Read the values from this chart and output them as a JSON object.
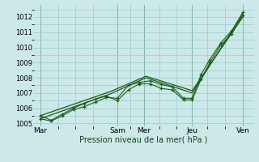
{
  "xlabel": "Pression niveau de la mer( hPa )",
  "background_color": "#cce8e8",
  "grid_color": "#99cccc",
  "line_color": "#1a5c1a",
  "vline_color": "#336633",
  "ylim": [
    1004.8,
    1012.8
  ],
  "yticks": [
    1005,
    1006,
    1007,
    1008,
    1009,
    1010,
    1011,
    1012
  ],
  "xlim": [
    0,
    10.0
  ],
  "day_labels": [
    "Mar",
    "Sam",
    "Mer",
    "Jeu",
    "Ven"
  ],
  "day_positions": [
    0.3,
    3.8,
    5.0,
    7.2,
    9.5
  ],
  "vline_positions": [
    0.3,
    3.8,
    5.0,
    7.2,
    9.5
  ],
  "line1_x": [
    0.3,
    0.8,
    1.3,
    1.8,
    2.3,
    2.8,
    3.3,
    3.8,
    4.3,
    4.8,
    5.3,
    5.8,
    6.3,
    6.8,
    7.2,
    7.6,
    8.0,
    8.5,
    9.0,
    9.5
  ],
  "line1_y": [
    1005.3,
    1005.15,
    1005.5,
    1005.9,
    1006.1,
    1006.4,
    1006.7,
    1006.65,
    1007.5,
    1007.7,
    1007.8,
    1007.55,
    1007.4,
    1006.65,
    1006.65,
    1008.2,
    1009.2,
    1010.3,
    1011.1,
    1012.3
  ],
  "line2_x": [
    0.3,
    0.8,
    1.3,
    1.8,
    2.3,
    2.8,
    3.3,
    3.8,
    4.3,
    4.8,
    5.3,
    5.8,
    6.3,
    6.8,
    7.2,
    7.6,
    8.0,
    8.5,
    9.0,
    9.5
  ],
  "line2_y": [
    1005.5,
    1005.2,
    1005.6,
    1006.0,
    1006.3,
    1006.6,
    1006.8,
    1006.5,
    1007.2,
    1007.6,
    1007.6,
    1007.3,
    1007.2,
    1006.55,
    1006.55,
    1007.9,
    1009.0,
    1010.15,
    1010.9,
    1012.1
  ],
  "line3_x": [
    0.3,
    3.5,
    5.1,
    7.2,
    9.5
  ],
  "line3_y": [
    1005.3,
    1006.95,
    1008.0,
    1007.0,
    1012.2
  ],
  "line4_x": [
    0.3,
    3.5,
    5.1,
    7.2,
    9.5
  ],
  "line4_y": [
    1005.5,
    1007.1,
    1008.1,
    1007.15,
    1012.0
  ],
  "xlabel_fontsize": 7,
  "tick_fontsize": 6,
  "minor_grid": true,
  "minor_xticks": [
    1.1,
    1.9,
    2.7,
    4.4,
    5.7,
    6.5,
    7.9,
    8.7
  ]
}
